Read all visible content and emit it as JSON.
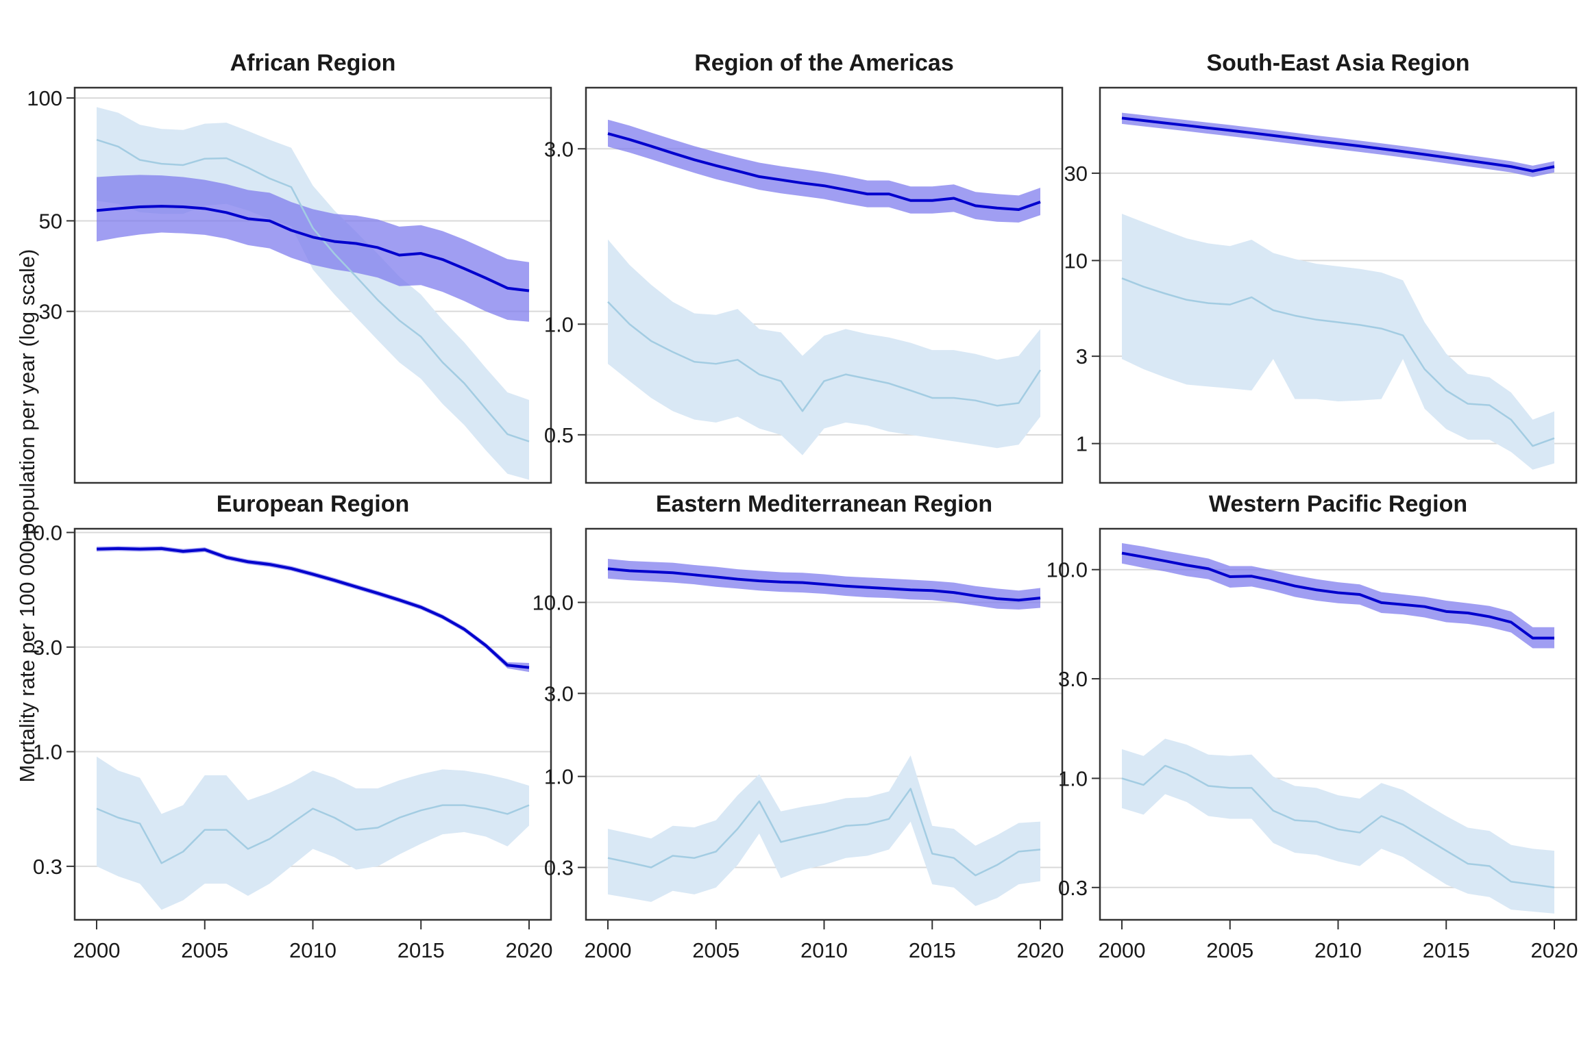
{
  "figure": {
    "y_axis_label": "Mortality rate per 100 000 population per year (log scale)",
    "colors": {
      "dark_line": "#0000CD",
      "dark_band": "#7B79ED",
      "dark_band_opacity": 0.72,
      "light_line": "#A3CCE2",
      "light_band": "#D9E8F5",
      "gridline": "#D9D9D9",
      "panel_border": "#333333",
      "tick_text": "#1A1A1A"
    }
  },
  "chart_data": {
    "type": "line",
    "x_label": "",
    "years": [
      2000,
      2001,
      2002,
      2003,
      2004,
      2005,
      2006,
      2007,
      2008,
      2009,
      2010,
      2011,
      2012,
      2013,
      2014,
      2015,
      2016,
      2017,
      2018,
      2019,
      2020
    ],
    "x_ticks": [
      2000,
      2005,
      2010,
      2015,
      2020
    ],
    "x_tick_labels": [
      "2000",
      "2005",
      "2010",
      "2015",
      "2020"
    ],
    "legend_position": "none",
    "grid": "major-only",
    "panels": [
      {
        "title": "African Region",
        "ylim": [
          11.4,
          106
        ],
        "y_ticks": [
          100,
          50,
          30
        ],
        "y_tick_labels": [
          "100",
          "50",
          "30"
        ],
        "series": [
          {
            "id": "dark-blue",
            "line": [
              53,
              53.6,
              54.1,
              54.3,
              54.1,
              53.6,
              52.4,
              50.6,
              50,
              47.4,
              45.6,
              44.5,
              44,
              43,
              41.2,
              41.6,
              40.2,
              38.2,
              36.2,
              34.2,
              33.7
            ],
            "lower": [
              44.5,
              45.5,
              46.3,
              46.8,
              46.6,
              46.2,
              45.2,
              43.6,
              42.8,
              40.6,
              39,
              38,
              37.3,
              36.3,
              34.6,
              34.8,
              33.5,
              31.8,
              30,
              28.6,
              28.3
            ],
            "upper": [
              64,
              64.5,
              64.8,
              64.6,
              64,
              63,
              61.5,
              59.5,
              58.6,
              55.6,
              53.4,
              52,
              51.5,
              50.4,
              48.4,
              48.8,
              47.2,
              45,
              42.6,
              40.3,
              39.6
            ]
          },
          {
            "id": "light-blue",
            "line": [
              79,
              76,
              70.5,
              69,
              68.5,
              71,
              71.2,
              67.5,
              63.5,
              60.5,
              48,
              41.5,
              36.5,
              32,
              28.5,
              26,
              22.5,
              20,
              17.3,
              15,
              14.4
            ],
            "lower": [
              56,
              55,
              52.5,
              52,
              52,
              54.5,
              55,
              53,
              50.5,
              48.5,
              38,
              33,
              29,
              25.5,
              22.5,
              20.5,
              17.8,
              15.8,
              13.7,
              12,
              11.6
            ],
            "upper": [
              95,
              92,
              86,
              84,
              83.5,
              86.5,
              87,
              83,
              79,
              75.5,
              61,
              53,
              47,
              41.5,
              36.5,
              33,
              28.6,
              25.2,
              21.8,
              19,
              18.2
            ]
          }
        ]
      },
      {
        "title": "Region of the Americas",
        "ylim": [
          0.37,
          4.4
        ],
        "y_ticks": [
          3,
          1,
          0.5
        ],
        "y_tick_labels": [
          "3.0",
          "1.0",
          "0.5"
        ],
        "series": [
          {
            "id": "dark-blue",
            "line": [
              3.3,
              3.18,
              3.05,
              2.92,
              2.8,
              2.7,
              2.61,
              2.52,
              2.47,
              2.42,
              2.38,
              2.32,
              2.26,
              2.26,
              2.17,
              2.17,
              2.2,
              2.1,
              2.07,
              2.05,
              2.15
            ],
            "lower": [
              3.04,
              2.93,
              2.81,
              2.69,
              2.58,
              2.48,
              2.4,
              2.32,
              2.27,
              2.23,
              2.19,
              2.13,
              2.08,
              2.08,
              2,
              2,
              2.02,
              1.93,
              1.9,
              1.89,
              1.98
            ],
            "upper": [
              3.6,
              3.47,
              3.32,
              3.18,
              3.05,
              2.94,
              2.84,
              2.75,
              2.69,
              2.64,
              2.59,
              2.53,
              2.46,
              2.46,
              2.37,
              2.37,
              2.4,
              2.29,
              2.26,
              2.24,
              2.35
            ]
          },
          {
            "id": "light-blue",
            "line": [
              1.15,
              1,
              0.9,
              0.84,
              0.79,
              0.78,
              0.8,
              0.73,
              0.7,
              0.58,
              0.7,
              0.73,
              0.71,
              0.69,
              0.66,
              0.63,
              0.63,
              0.62,
              0.6,
              0.61,
              0.75
            ],
            "lower": [
              0.78,
              0.7,
              0.63,
              0.58,
              0.55,
              0.54,
              0.56,
              0.52,
              0.5,
              0.44,
              0.52,
              0.54,
              0.53,
              0.51,
              0.5,
              0.49,
              0.48,
              0.47,
              0.46,
              0.47,
              0.56
            ],
            "upper": [
              1.7,
              1.45,
              1.28,
              1.15,
              1.07,
              1.06,
              1.1,
              0.97,
              0.95,
              0.82,
              0.93,
              0.97,
              0.94,
              0.92,
              0.89,
              0.85,
              0.85,
              0.83,
              0.8,
              0.82,
              0.97
            ]
          }
        ]
      },
      {
        "title": "South-East Asia Region",
        "ylim": [
          0.61,
          88
        ],
        "y_ticks": [
          30,
          10,
          3,
          1
        ],
        "y_tick_labels": [
          "30",
          "10",
          "3",
          "1"
        ],
        "series": [
          {
            "id": "dark-blue",
            "line": [
              60,
              58.2,
              56.4,
              54.7,
              53,
              51.4,
              49.8,
              48.2,
              46.6,
              45,
              43.6,
              42.2,
              40.8,
              39.4,
              38,
              36.6,
              35.2,
              33.9,
              32.6,
              30.8,
              32.6
            ],
            "lower": [
              55.8,
              54.1,
              52.5,
              50.9,
              49.3,
              47.8,
              46.3,
              44.8,
              43.3,
              41.9,
              40.5,
              39.2,
              37.9,
              36.6,
              35.3,
              34,
              32.7,
              31.5,
              30.3,
              28.6,
              30.3
            ],
            "upper": [
              64.2,
              62.3,
              60.3,
              58.5,
              56.7,
              55,
              53.3,
              51.6,
              49.9,
              48.2,
              46.7,
              45.2,
              43.7,
              42.2,
              40.7,
              39.2,
              37.7,
              36.3,
              34.9,
              33,
              34.9
            ]
          },
          {
            "id": "light-blue",
            "line": [
              8,
              7.2,
              6.6,
              6.1,
              5.85,
              5.75,
              6.3,
              5.35,
              5,
              4.75,
              4.6,
              4.45,
              4.25,
              3.9,
              2.55,
              1.95,
              1.65,
              1.62,
              1.35,
              0.97,
              1.07
            ],
            "lower": [
              2.9,
              2.55,
              2.3,
              2.1,
              2.05,
              2,
              1.95,
              2.9,
              1.75,
              1.75,
              1.7,
              1.72,
              1.75,
              2.9,
              1.55,
              1.2,
              1.05,
              1.05,
              0.9,
              0.72,
              0.78
            ],
            "upper": [
              18,
              16.2,
              14.6,
              13.2,
              12.4,
              12,
              13,
              11,
              10.2,
              9.6,
              9.3,
              9,
              8.6,
              7.8,
              4.6,
              3.1,
              2.4,
              2.3,
              1.9,
              1.35,
              1.5
            ]
          }
        ]
      },
      {
        "title": "European Region",
        "ylim": [
          0.171,
          10.4
        ],
        "y_ticks": [
          10,
          3,
          1,
          0.3
        ],
        "y_tick_labels": [
          "10.0",
          "3.0",
          "1.0",
          "0.3"
        ],
        "series": [
          {
            "id": "dark-blue",
            "line": [
              8.4,
              8.45,
              8.4,
              8.45,
              8.2,
              8.35,
              7.7,
              7.35,
              7.15,
              6.85,
              6.45,
              6.05,
              5.65,
              5.28,
              4.92,
              4.56,
              4.12,
              3.62,
              3.05,
              2.48,
              2.42
            ],
            "lower": [
              8.19,
              8.24,
              8.19,
              8.24,
              8,
              8.14,
              7.51,
              7.17,
              6.97,
              6.68,
              6.29,
              5.9,
              5.51,
              5.15,
              4.8,
              4.45,
              4.02,
              3.53,
              2.97,
              2.4,
              2.31
            ],
            "upper": [
              8.61,
              8.66,
              8.61,
              8.66,
              8.41,
              8.56,
              7.89,
              7.53,
              7.33,
              7.02,
              6.61,
              6.2,
              5.79,
              5.41,
              5.04,
              4.67,
              4.22,
              3.71,
              3.13,
              2.56,
              2.54
            ]
          },
          {
            "id": "light-blue",
            "line": [
              0.55,
              0.5,
              0.47,
              0.31,
              0.35,
              0.44,
              0.44,
              0.36,
              0.4,
              0.47,
              0.55,
              0.5,
              0.44,
              0.45,
              0.5,
              0.54,
              0.57,
              0.57,
              0.55,
              0.52,
              0.57
            ],
            "lower": [
              0.3,
              0.27,
              0.25,
              0.19,
              0.21,
              0.25,
              0.25,
              0.22,
              0.25,
              0.3,
              0.36,
              0.33,
              0.29,
              0.3,
              0.34,
              0.38,
              0.42,
              0.43,
              0.41,
              0.37,
              0.46
            ],
            "upper": [
              0.95,
              0.82,
              0.76,
              0.52,
              0.57,
              0.78,
              0.78,
              0.6,
              0.65,
              0.72,
              0.82,
              0.76,
              0.68,
              0.68,
              0.74,
              0.79,
              0.83,
              0.82,
              0.79,
              0.75,
              0.7
            ]
          }
        ]
      },
      {
        "title": "Eastern Mediterranean Region",
        "ylim": [
          0.15,
          26.5
        ],
        "y_ticks": [
          10,
          3,
          1,
          0.3
        ],
        "y_tick_labels": [
          "10.0",
          "3.0",
          "1.0",
          "0.3"
        ],
        "series": [
          {
            "id": "dark-blue",
            "line": [
              15.6,
              15.2,
              15,
              14.8,
              14.4,
              14,
              13.6,
              13.3,
              13.1,
              13,
              12.7,
              12.4,
              12.2,
              12,
              11.8,
              11.7,
              11.4,
              10.9,
              10.5,
              10.3,
              10.6
            ],
            "lower": [
              13.7,
              13.4,
              13.2,
              13,
              12.7,
              12.3,
              12,
              11.7,
              11.5,
              11.4,
              11.2,
              10.9,
              10.7,
              10.6,
              10.4,
              10.3,
              10,
              9.6,
              9.2,
              9.1,
              9.3
            ],
            "upper": [
              17.8,
              17.3,
              17.1,
              16.9,
              16.4,
              16,
              15.5,
              15.2,
              14.9,
              14.8,
              14.5,
              14.1,
              13.9,
              13.7,
              13.5,
              13.3,
              13,
              12.4,
              12,
              11.7,
              12.1
            ]
          },
          {
            "id": "light-blue",
            "line": [
              0.34,
              0.32,
              0.3,
              0.35,
              0.34,
              0.37,
              0.5,
              0.72,
              0.42,
              0.45,
              0.48,
              0.52,
              0.53,
              0.57,
              0.85,
              0.36,
              0.34,
              0.27,
              0.31,
              0.37,
              0.38
            ],
            "lower": [
              0.21,
              0.2,
              0.19,
              0.22,
              0.21,
              0.23,
              0.31,
              0.47,
              0.26,
              0.29,
              0.31,
              0.34,
              0.35,
              0.38,
              0.55,
              0.24,
              0.23,
              0.18,
              0.2,
              0.24,
              0.25
            ],
            "upper": [
              0.5,
              0.47,
              0.44,
              0.52,
              0.51,
              0.56,
              0.78,
              1.03,
              0.63,
              0.67,
              0.7,
              0.75,
              0.76,
              0.82,
              1.32,
              0.52,
              0.5,
              0.4,
              0.46,
              0.54,
              0.55
            ]
          }
        ]
      },
      {
        "title": "Western Pacific Region",
        "ylim": [
          0.21,
          15.7
        ],
        "y_ticks": [
          10,
          3,
          1,
          0.3
        ],
        "y_tick_labels": [
          "10.0",
          "3.0",
          "1.0",
          "0.3"
        ],
        "series": [
          {
            "id": "dark-blue",
            "line": [
              12,
              11.5,
              11,
              10.5,
              10.1,
              9.25,
              9.3,
              8.85,
              8.35,
              8,
              7.75,
              7.6,
              6.95,
              6.8,
              6.65,
              6.3,
              6.2,
              5.95,
              5.6,
              4.7,
              4.7
            ],
            "lower": [
              10.7,
              10.2,
              9.8,
              9.3,
              9,
              8.2,
              8.3,
              7.9,
              7.4,
              7.1,
              6.9,
              6.8,
              6.2,
              6.1,
              5.9,
              5.6,
              5.5,
              5.3,
              5,
              4.2,
              4.2
            ],
            "upper": [
              13.4,
              12.9,
              12.3,
              11.8,
              11.3,
              10.4,
              10.4,
              9.9,
              9.4,
              9,
              8.7,
              8.5,
              7.8,
              7.6,
              7.4,
              7.1,
              6.9,
              6.7,
              6.3,
              5.3,
              5.3
            ]
          },
          {
            "id": "light-blue",
            "line": [
              1,
              0.93,
              1.15,
              1.05,
              0.92,
              0.9,
              0.9,
              0.7,
              0.63,
              0.62,
              0.57,
              0.55,
              0.66,
              0.6,
              0.52,
              0.45,
              0.39,
              0.38,
              0.32,
              0.31,
              0.3
            ],
            "lower": [
              0.72,
              0.67,
              0.84,
              0.77,
              0.66,
              0.64,
              0.64,
              0.49,
              0.44,
              0.43,
              0.4,
              0.38,
              0.46,
              0.42,
              0.36,
              0.31,
              0.28,
              0.27,
              0.235,
              0.23,
              0.225
            ],
            "upper": [
              1.38,
              1.28,
              1.55,
              1.45,
              1.3,
              1.28,
              1.3,
              1.02,
              0.92,
              0.9,
              0.83,
              0.8,
              0.95,
              0.88,
              0.76,
              0.66,
              0.58,
              0.56,
              0.48,
              0.46,
              0.45
            ]
          }
        ]
      }
    ]
  }
}
